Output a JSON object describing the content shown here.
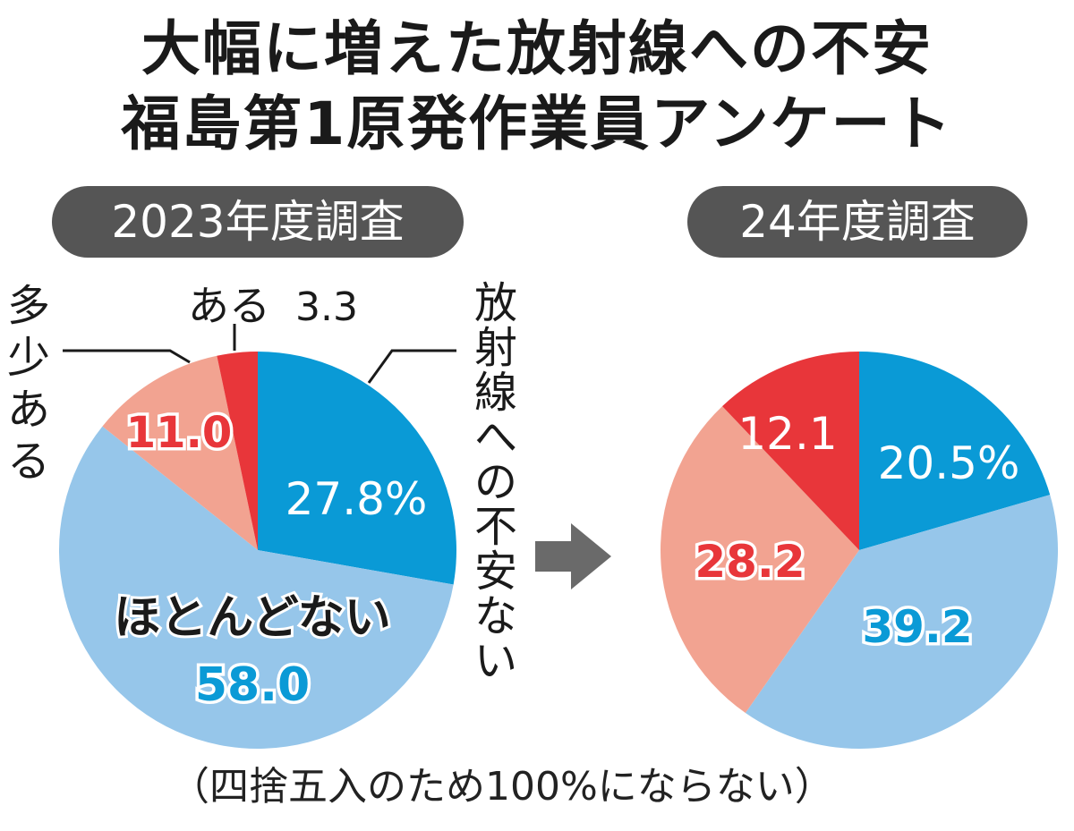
{
  "title_line1": "大幅に増えた放射線への不安",
  "title_line2": "福島第1原発作業員アンケート",
  "left_survey_label": "2023年度調査",
  "right_survey_label": "24年度調査",
  "footnote": "（四捨五入のため100%にならない）",
  "colors": {
    "none_anxiety": "#0a9ad6",
    "hardly": "#96c6ea",
    "somewhat": "#f2a391",
    "yes": "#e8363a",
    "pill_bg": "#555555",
    "arrow": "#6a6a6a"
  },
  "chart_data": [
    {
      "type": "pie",
      "title": "2023年度調査",
      "slices": [
        {
          "label": "放射線への不安ない",
          "value": 27.8,
          "value_text": "27.8%"
        },
        {
          "label": "ほとんどない",
          "value": 58.0,
          "value_text": "58.0"
        },
        {
          "label": "多少ある",
          "value": 11.0,
          "value_text": "11.0"
        },
        {
          "label": "ある",
          "value": 3.3,
          "value_text": "3.3"
        }
      ]
    },
    {
      "type": "pie",
      "title": "24年度調査",
      "slices": [
        {
          "label": "放射線への不安ない",
          "value": 20.5,
          "value_text": "20.5%"
        },
        {
          "label": "ほとんどない",
          "value": 39.2,
          "value_text": "39.2"
        },
        {
          "label": "多少ある",
          "value": 28.2,
          "value_text": "28.2"
        },
        {
          "label": "ある",
          "value": 12.1,
          "value_text": "12.1"
        }
      ]
    }
  ]
}
